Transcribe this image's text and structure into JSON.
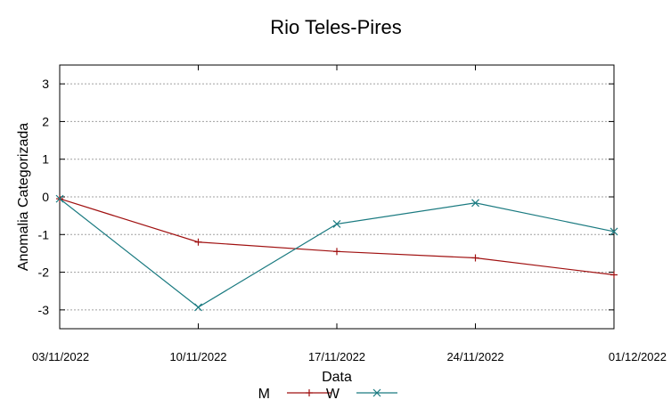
{
  "chart_data": {
    "type": "line",
    "title": "Rio Teles-Pires",
    "xlabel": "Data",
    "ylabel": "Anomalia Categorizada",
    "categories": [
      "03/11/2022",
      "10/11/2022",
      "17/11/2022",
      "24/11/2022",
      "01/12/2022"
    ],
    "ylim": [
      -3.5,
      3.5
    ],
    "yticks": [
      3,
      2,
      1,
      0,
      -1,
      -2,
      -3
    ],
    "grid": true,
    "legend": "bottom",
    "series": [
      {
        "name": "M",
        "color": "#a01010",
        "marker": "plus",
        "values": [
          -0.05,
          -1.2,
          -1.45,
          -1.62,
          -2.07
        ]
      },
      {
        "name": "W",
        "color": "#1a7a80",
        "marker": "cross",
        "values": [
          -0.05,
          -2.93,
          -0.72,
          -0.16,
          -0.92
        ]
      }
    ]
  }
}
